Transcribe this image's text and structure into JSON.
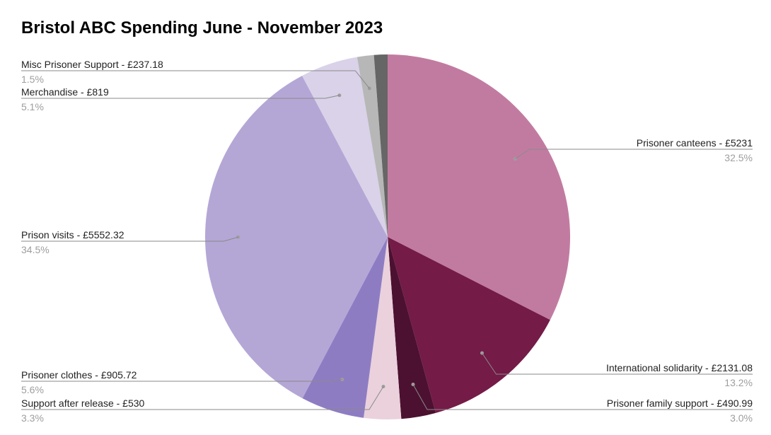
{
  "chart_data": {
    "type": "pie",
    "title": "Bristol ABC Spending June - November 2023",
    "slices": [
      {
        "label": "Prisoner canteens - £5231",
        "percent_label": "32.5%",
        "value": 5231,
        "color": "#c27ba0"
      },
      {
        "label": "International solidarity - £2131.08",
        "percent_label": "13.2%",
        "value": 2131.08,
        "color": "#741b47"
      },
      {
        "label": "Prisoner family support - £490.99",
        "percent_label": "3.0%",
        "value": 490.99,
        "color": "#4c1130"
      },
      {
        "label": "Support after release - £530",
        "percent_label": "3.3%",
        "value": 530,
        "color": "#ead1dc"
      },
      {
        "label": "Prisoner clothes - £905.72",
        "percent_label": "5.6%",
        "value": 905.72,
        "color": "#8e7cc3"
      },
      {
        "label": "Prison visits - £5552.32",
        "percent_label": "34.5%",
        "value": 5552.32,
        "color": "#b4a7d6"
      },
      {
        "label": "Merchandise - £819",
        "percent_label": "5.1%",
        "value": 819,
        "color": "#d9d2e9"
      },
      {
        "label": "Misc Prisoner Support - £237.18",
        "percent_label": "1.5%",
        "value": 237.18,
        "color": "#b7b7b7"
      },
      {
        "label": "",
        "percent_label": "",
        "value": 193,
        "color": "#666666"
      }
    ]
  }
}
